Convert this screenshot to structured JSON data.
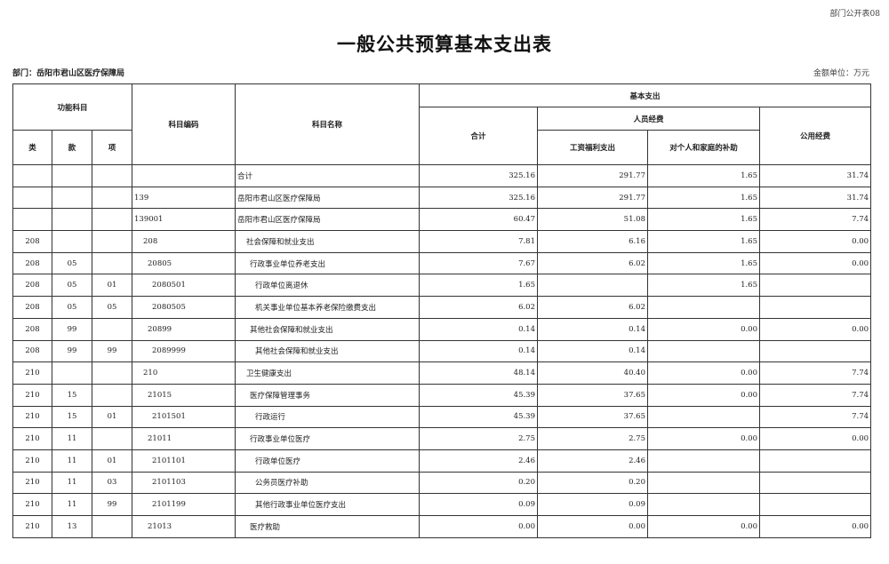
{
  "header": {
    "form_no": "部门公开表08",
    "title": "一般公共预算基本支出表",
    "department": "部门：岳阳市君山区医疗保障局",
    "unit": "金额单位：万元"
  },
  "columns": {
    "func_subject": "功能科目",
    "lei": "类",
    "kuan": "款",
    "xiang": "项",
    "code": "科目编码",
    "name": "科目名称",
    "basic": "基本支出",
    "total": "合计",
    "personnel": "人员经费",
    "salary": "工资福利支出",
    "subsidy": "对个人和家庭的补助",
    "public": "公用经费"
  },
  "rows": [
    {
      "lei": "",
      "kuan": "",
      "xiang": "",
      "code": "",
      "name": "合计",
      "level": 0,
      "total": "325.16",
      "salary": "291.77",
      "subsidy": "1.65",
      "public": "31.74"
    },
    {
      "lei": "",
      "kuan": "",
      "xiang": "",
      "code": "139",
      "name": "岳阳市君山区医疗保障局",
      "level": 0,
      "total": "325.16",
      "salary": "291.77",
      "subsidy": "1.65",
      "public": "31.74"
    },
    {
      "lei": "",
      "kuan": "",
      "xiang": "",
      "code": "139001",
      "name": "岳阳市君山区医疗保障局",
      "level": 1,
      "total": "60.47",
      "salary": "51.08",
      "subsidy": "1.65",
      "public": "7.74"
    },
    {
      "lei": "208",
      "kuan": "",
      "xiang": "",
      "code": "208",
      "name": "社会保障和就业支出",
      "level": 2,
      "total": "7.81",
      "salary": "6.16",
      "subsidy": "1.65",
      "public": "0.00"
    },
    {
      "lei": "208",
      "kuan": "05",
      "xiang": "",
      "code": "20805",
      "name": "行政事业单位养老支出",
      "level": 3,
      "total": "7.67",
      "salary": "6.02",
      "subsidy": "1.65",
      "public": "0.00"
    },
    {
      "lei": "208",
      "kuan": "05",
      "xiang": "01",
      "code": "2080501",
      "name": "行政单位离退休",
      "level": 4,
      "total": "1.65",
      "salary": "",
      "subsidy": "1.65",
      "public": ""
    },
    {
      "lei": "208",
      "kuan": "05",
      "xiang": "05",
      "code": "2080505",
      "name": "机关事业单位基本养老保险缴费支出",
      "level": 4,
      "total": "6.02",
      "salary": "6.02",
      "subsidy": "",
      "public": ""
    },
    {
      "lei": "208",
      "kuan": "99",
      "xiang": "",
      "code": "20899",
      "name": "其他社会保障和就业支出",
      "level": 3,
      "total": "0.14",
      "salary": "0.14",
      "subsidy": "0.00",
      "public": "0.00"
    },
    {
      "lei": "208",
      "kuan": "99",
      "xiang": "99",
      "code": "2089999",
      "name": "其他社会保障和就业支出",
      "level": 4,
      "total": "0.14",
      "salary": "0.14",
      "subsidy": "",
      "public": ""
    },
    {
      "lei": "210",
      "kuan": "",
      "xiang": "",
      "code": "210",
      "name": "卫生健康支出",
      "level": 2,
      "total": "48.14",
      "salary": "40.40",
      "subsidy": "0.00",
      "public": "7.74"
    },
    {
      "lei": "210",
      "kuan": "15",
      "xiang": "",
      "code": "21015",
      "name": "医疗保障管理事务",
      "level": 3,
      "total": "45.39",
      "salary": "37.65",
      "subsidy": "0.00",
      "public": "7.74"
    },
    {
      "lei": "210",
      "kuan": "15",
      "xiang": "01",
      "code": "2101501",
      "name": "行政运行",
      "level": 4,
      "total": "45.39",
      "salary": "37.65",
      "subsidy": "",
      "public": "7.74"
    },
    {
      "lei": "210",
      "kuan": "11",
      "xiang": "",
      "code": "21011",
      "name": "行政事业单位医疗",
      "level": 3,
      "total": "2.75",
      "salary": "2.75",
      "subsidy": "0.00",
      "public": "0.00"
    },
    {
      "lei": "210",
      "kuan": "11",
      "xiang": "01",
      "code": "2101101",
      "name": "行政单位医疗",
      "level": 4,
      "total": "2.46",
      "salary": "2.46",
      "subsidy": "",
      "public": ""
    },
    {
      "lei": "210",
      "kuan": "11",
      "xiang": "03",
      "code": "2101103",
      "name": "公务员医疗补助",
      "level": 4,
      "total": "0.20",
      "salary": "0.20",
      "subsidy": "",
      "public": ""
    },
    {
      "lei": "210",
      "kuan": "11",
      "xiang": "99",
      "code": "2101199",
      "name": "其他行政事业单位医疗支出",
      "level": 4,
      "total": "0.09",
      "salary": "0.09",
      "subsidy": "",
      "public": ""
    },
    {
      "lei": "210",
      "kuan": "13",
      "xiang": "",
      "code": "21013",
      "name": "医疗救助",
      "level": 3,
      "total": "0.00",
      "salary": "0.00",
      "subsidy": "0.00",
      "public": "0.00"
    }
  ]
}
